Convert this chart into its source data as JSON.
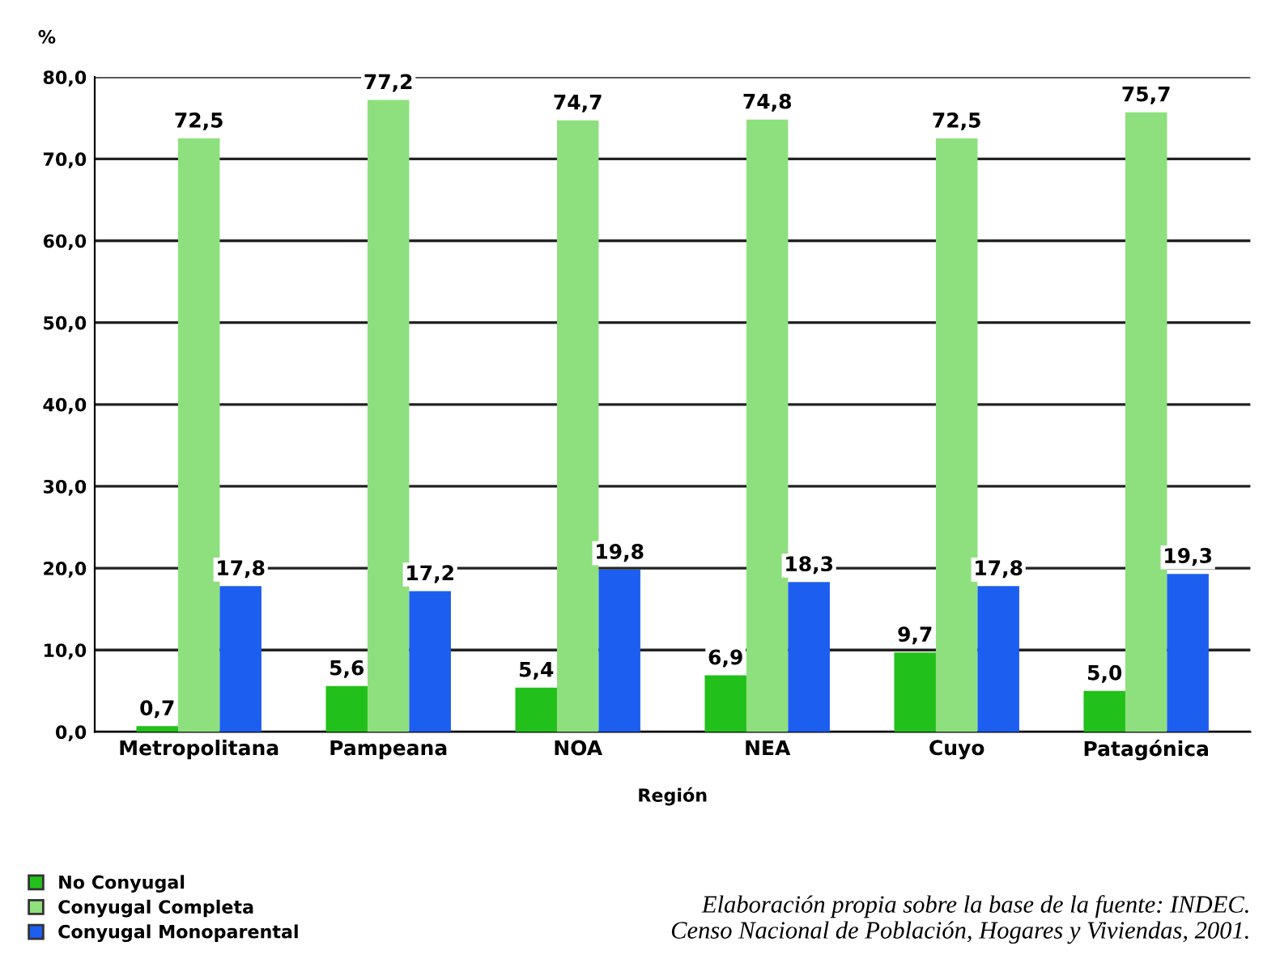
{
  "chart_data": {
    "type": "bar",
    "ylabel": "%",
    "xlabel": "Región",
    "categories": [
      "Metropolitana",
      "Pampeana",
      "NOA",
      "NEA",
      "Cuyo",
      "Patagónica"
    ],
    "series": [
      {
        "name": "No Conyugal",
        "color": "#22c01a",
        "values": [
          0.7,
          5.6,
          5.4,
          6.9,
          9.7,
          5.0
        ],
        "value_labels": [
          "0,7",
          "5,6",
          "5,4",
          "6,9",
          "9,7",
          "5,0"
        ]
      },
      {
        "name": "Conyugal Completa",
        "color": "#8ee07e",
        "values": [
          72.5,
          77.2,
          74.7,
          74.8,
          72.5,
          75.7
        ],
        "value_labels": [
          "72,5",
          "77,2",
          "74,7",
          "74,8",
          "72,5",
          "75,7"
        ]
      },
      {
        "name": "Conyugal Monoparental",
        "color": "#1b5ef0",
        "values": [
          17.8,
          17.2,
          19.8,
          18.3,
          17.8,
          19.3
        ],
        "value_labels": [
          "17,8",
          "17,2",
          "19,8",
          "18,3",
          "17,8",
          "19,3"
        ]
      }
    ],
    "ylim": [
      0,
      80
    ],
    "yticks": [
      {
        "value": 0,
        "label": "0,0"
      },
      {
        "value": 10,
        "label": "10,0"
      },
      {
        "value": 20,
        "label": "20,0"
      },
      {
        "value": 30,
        "label": "30,0"
      },
      {
        "value": 40,
        "label": "40,0"
      },
      {
        "value": 50,
        "label": "50,0"
      },
      {
        "value": 60,
        "label": "60,0"
      },
      {
        "value": 70,
        "label": "70,0"
      },
      {
        "value": 80,
        "label": "80,0"
      }
    ],
    "grid": "y",
    "legend": "bottom left",
    "annotations": [
      "Elaboración propia sobre la base de la fuente: INDEC.\nCenso Nacional de Población, Hogares y Viviendas, 2001."
    ]
  }
}
